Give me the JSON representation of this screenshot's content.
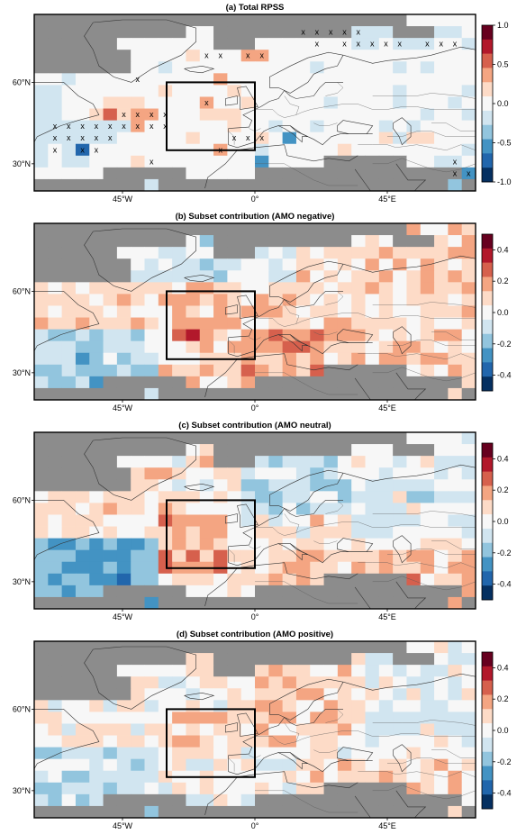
{
  "chart_data": [
    {
      "type": "heatmap",
      "title": "(a) Total RPSS",
      "x_tick_labels": [
        "45°W",
        "0°",
        "45°E"
      ],
      "y_tick_labels": [
        "60°N",
        "30°N"
      ],
      "colorbar": {
        "ticks": [
          "1.0",
          "0.5",
          "0.0",
          "-0.5",
          "-1.0"
        ],
        "range": [
          -1.0,
          1.0
        ]
      },
      "grid": {
        "lon_range": [
          -75,
          75
        ],
        "lat_range": [
          20,
          85
        ],
        "cell_degrees": 5,
        "rows_north_to_south": true
      },
      "boxed_region": {
        "lon": [
          -30,
          0
        ],
        "lat": [
          35,
          60
        ]
      },
      "values": [
        "___________________________.....",
        "___________..__________nnn___nn.",
        "______.......___.......nn.nnn..n",
        "_______....j...JJ...............",
        "_______..n..........n.....n.n...",
        "..n..........t..................",
        "nn.......j....j...........n....n",
        "nn...jjl....t..j.....n....n...n.",
        "nn..jJjJt...jjj.............n..n",
        "nnnnnnnt......j..n..n....n.n....",
        "nnnnnn.....j....j.N......lnjj...",
        "n.ns.........t..n.....l........n",
        "n.nn...j.....o..N....______..nn.",
        ".....______....._______________N",
        "________n_____________________N_"
      ],
      "legend_values": "_ = land/no-data (grey), . = near 0, n = -0.2, N = -0.5, s = -0.8, j = 0.2, J = 0.5, l = 0.3, t = 0.4, o = 0.1",
      "significant_cells": [
        [
          1,
          19
        ],
        [
          1,
          20
        ],
        [
          1,
          21
        ],
        [
          1,
          22
        ],
        [
          1,
          23
        ],
        [
          2,
          20
        ],
        [
          2,
          22
        ],
        [
          2,
          23
        ],
        [
          2,
          24
        ],
        [
          2,
          25
        ],
        [
          2,
          26
        ],
        [
          2,
          28
        ],
        [
          2,
          29
        ],
        [
          2,
          30
        ],
        [
          3,
          12
        ],
        [
          3,
          13
        ],
        [
          3,
          15
        ],
        [
          3,
          16
        ],
        [
          5,
          7
        ],
        [
          7,
          12
        ],
        [
          8,
          6
        ],
        [
          8,
          7
        ],
        [
          8,
          8
        ],
        [
          8,
          9
        ],
        [
          9,
          1
        ],
        [
          9,
          2
        ],
        [
          9,
          3
        ],
        [
          9,
          4
        ],
        [
          9,
          5
        ],
        [
          9,
          6
        ],
        [
          9,
          7
        ],
        [
          9,
          8
        ],
        [
          9,
          9
        ],
        [
          10,
          1
        ],
        [
          10,
          2
        ],
        [
          10,
          3
        ],
        [
          10,
          4
        ],
        [
          10,
          5
        ],
        [
          10,
          14
        ],
        [
          10,
          15
        ],
        [
          10,
          16
        ],
        [
          11,
          1
        ],
        [
          11,
          3
        ],
        [
          11,
          4
        ],
        [
          11,
          13
        ],
        [
          12,
          8
        ],
        [
          12,
          30
        ],
        [
          13,
          30
        ],
        [
          13,
          31
        ]
      ]
    },
    {
      "type": "heatmap",
      "title": "(b) Subset contribution (AMO negative)",
      "x_tick_labels": [
        "45°W",
        "0°",
        "45°E"
      ],
      "y_tick_labels": [
        "60°N",
        "30°N"
      ],
      "colorbar": {
        "ticks": [
          "0.4",
          "0.2",
          "0.0",
          "-0.2",
          "-0.4"
        ],
        "range": [
          -0.5,
          0.5
        ]
      },
      "boxed_region": {
        "lon": [
          -30,
          0
        ],
        "lat": [
          35,
          60
        ]
      }
    },
    {
      "type": "heatmap",
      "title": "(c) Subset contribution (AMO neutral)",
      "x_tick_labels": [
        "45°W",
        "0°",
        "45°E"
      ],
      "y_tick_labels": [
        "60°N",
        "30°N"
      ],
      "colorbar": {
        "ticks": [
          "0.4",
          "0.2",
          "0.0",
          "-0.2",
          "-0.4"
        ],
        "range": [
          -0.5,
          0.5
        ]
      },
      "boxed_region": {
        "lon": [
          -30,
          0
        ],
        "lat": [
          35,
          60
        ]
      }
    },
    {
      "type": "heatmap",
      "title": "(d) Subset contribution (AMO positive)",
      "x_tick_labels": [
        "45°W",
        "0°",
        "45°E"
      ],
      "y_tick_labels": [
        "60°N",
        "30°N"
      ],
      "colorbar": {
        "ticks": [
          "0.4",
          "0.2",
          "0.0",
          "-0.2",
          "-0.4"
        ],
        "range": [
          -0.5,
          0.5
        ]
      },
      "boxed_region": {
        "lon": [
          -30,
          0
        ],
        "lat": [
          35,
          60
        ]
      }
    }
  ],
  "colors": {
    "land_mask": "#8c8c8c",
    "diverging_scale": [
      "#053061",
      "#2166ac",
      "#4393c3",
      "#92c5de",
      "#d1e5f0",
      "#f7f7f7",
      "#fddbc7",
      "#f4a582",
      "#d6604d",
      "#b2182b",
      "#67001f"
    ],
    "frame": "#000000",
    "coastline": "#333333"
  }
}
